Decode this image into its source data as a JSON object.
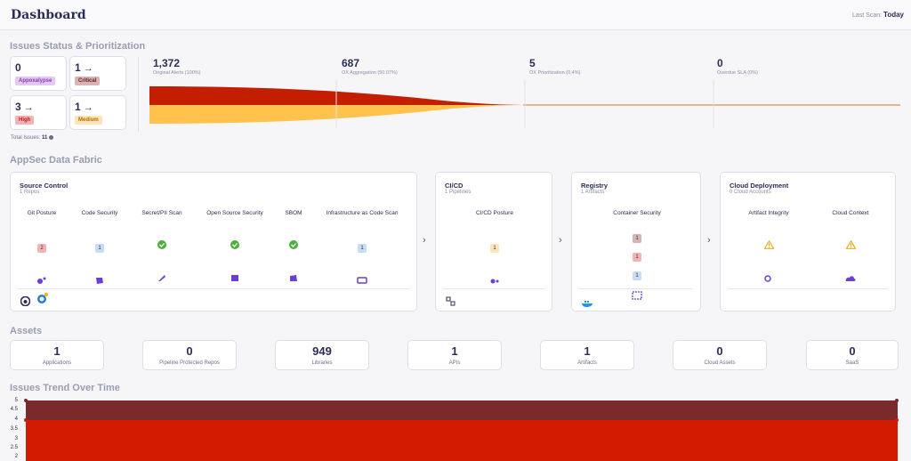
{
  "header": {
    "title": "Dashboard",
    "last_scan_label": "Last Scan:",
    "last_scan_value": "Today"
  },
  "issues_status": {
    "title": "Issues Status & Prioritization",
    "severities": [
      {
        "count": "0",
        "arrow": "",
        "label": "Appoxalypse",
        "bg": "#e4c8f2",
        "fg": "#8a3bb0"
      },
      {
        "count": "1",
        "arrow": "→",
        "label": "Critical",
        "bg": "#d9b3b3",
        "fg": "#5a2020"
      },
      {
        "count": "3",
        "arrow": "→",
        "label": "High",
        "bg": "#f4b3b3",
        "fg": "#c01818"
      },
      {
        "count": "1",
        "arrow": "→",
        "label": "Medium",
        "bg": "#fde3b8",
        "fg": "#b26b00"
      }
    ],
    "total_label": "Total Issues:",
    "total_value": "11",
    "funnel": [
      {
        "value": "1,372",
        "label": "Original Alerts (100%)"
      },
      {
        "value": "687",
        "label": "OX Aggregation (50.07%)"
      },
      {
        "value": "5",
        "label": "OX Prioritization (0.4%)"
      },
      {
        "value": "0",
        "label": "Overdue SLA (0%)"
      }
    ]
  },
  "data_fabric": {
    "title": "AppSec Data Fabric",
    "source_control": {
      "title": "Source Control",
      "sub": "1 Repos",
      "columns": [
        {
          "label": "Git Posture",
          "kind": "badge",
          "value": "2",
          "bg": "#f4b3b3",
          "icon": "git-posture-icon"
        },
        {
          "label": "Code Security",
          "kind": "badge",
          "value": "1",
          "bg": "#c8dcf5",
          "icon": "code-security-icon"
        },
        {
          "label": "Secret/PII Scan",
          "kind": "check",
          "value": "",
          "bg": "",
          "icon": "secret-scan-icon"
        },
        {
          "label": "Open Source Security",
          "kind": "check",
          "value": "",
          "bg": "",
          "icon": "open-source-icon"
        },
        {
          "label": "SBOM",
          "kind": "check",
          "value": "",
          "bg": "",
          "icon": "sbom-icon"
        },
        {
          "label": "Infrastructure as Code Scan",
          "kind": "badge",
          "value": "1",
          "bg": "#c8dcf5",
          "icon": "iac-icon"
        }
      ]
    },
    "cicd": {
      "title": "CI/CD",
      "sub": "1 Pipelines",
      "columns": [
        {
          "label": "CI/CD Posture",
          "kind": "badge",
          "value": "1",
          "bg": "#fde3b8",
          "icon": "cicd-posture-icon"
        }
      ]
    },
    "registry": {
      "title": "Registry",
      "sub": "1 Artifacts",
      "columns": [
        {
          "label": "Container Security",
          "kind": "stack",
          "values": [
            "1",
            "1",
            "1"
          ],
          "bgs": [
            "#d9b3b3",
            "#f4b3b3",
            "#c8dcf5"
          ],
          "icon": "container-icon"
        }
      ]
    },
    "cloud": {
      "title": "Cloud Deployment",
      "sub": "0 Cloud Accounts",
      "columns": [
        {
          "label": "Artifact Integrity",
          "kind": "warn",
          "icon": "artifact-integrity-icon"
        },
        {
          "label": "Cloud Context",
          "kind": "warn",
          "icon": "cloud-context-icon"
        }
      ]
    }
  },
  "assets": {
    "title": "Assets",
    "items": [
      {
        "value": "1",
        "label": "Applications"
      },
      {
        "value": "0",
        "label": "Pipeline Protected Repos"
      },
      {
        "value": "949",
        "label": "Libraries"
      },
      {
        "value": "1",
        "label": "APIs"
      },
      {
        "value": "1",
        "label": "Artifacts"
      },
      {
        "value": "0",
        "label": "Cloud Assets"
      },
      {
        "value": "0",
        "label": "SaaS"
      }
    ]
  },
  "trend": {
    "title": "Issues Trend Over Time",
    "y_ticks": [
      "5",
      "4.5",
      "4",
      "3.5",
      "3",
      "2.5",
      "2"
    ],
    "colors": {
      "top": "#7a2a2a",
      "bottom": "#d11a00"
    }
  }
}
